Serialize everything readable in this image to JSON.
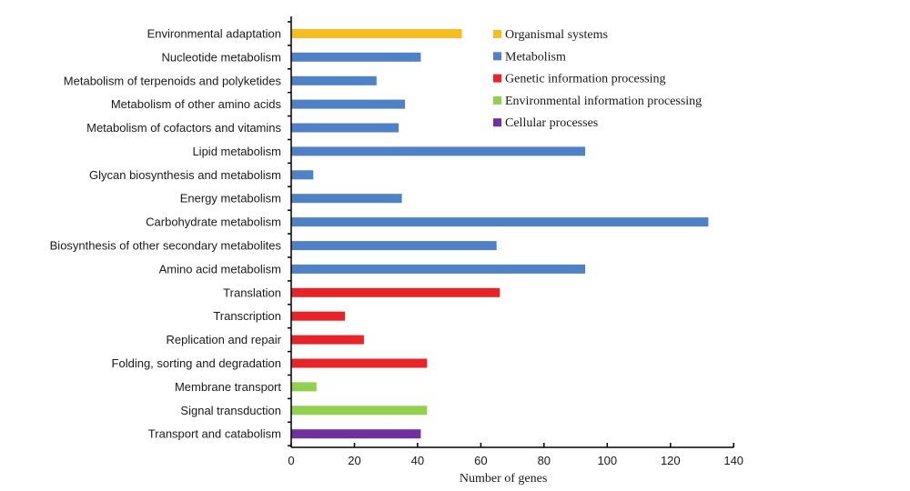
{
  "chart_data": {
    "type": "bar",
    "orientation": "horizontal",
    "categories": [
      "Environmental adaptation",
      "Nucleotide metabolism",
      "Metabolism of terpenoids and polyketides",
      "Metabolism of other amino acids",
      "Metabolism of cofactors and vitamins",
      "Lipid metabolism",
      "Glycan biosynthesis and metabolism",
      "Energy metabolism",
      "Carbohydrate metabolism",
      "Biosynthesis of other secondary metabolites",
      "Amino acid metabolism",
      "Translation",
      "Transcription",
      "Replication and repair",
      "Folding, sorting and degradation",
      "Membrane transport",
      "Signal transduction",
      "Transport and catabolism"
    ],
    "values": [
      54,
      41,
      27,
      36,
      34,
      93,
      7,
      35,
      132,
      65,
      93,
      66,
      17,
      23,
      43,
      8,
      43,
      41
    ],
    "groups": [
      "Organismal systems",
      "Metabolism",
      "Metabolism",
      "Metabolism",
      "Metabolism",
      "Metabolism",
      "Metabolism",
      "Metabolism",
      "Metabolism",
      "Metabolism",
      "Metabolism",
      "Genetic information processing",
      "Genetic information processing",
      "Genetic information processing",
      "Genetic information processing",
      "Environmental information processing",
      "Environmental information processing",
      "Cellular processes"
    ],
    "legend": [
      {
        "name": "Organismal systems",
        "color": "#f5bd1f"
      },
      {
        "name": "Metabolism",
        "color": "#4f81c6"
      },
      {
        "name": "Genetic information processing",
        "color": "#e8232a"
      },
      {
        "name": "Environmental information processing",
        "color": "#92d050"
      },
      {
        "name": "Cellular processes",
        "color": "#7030a0"
      }
    ],
    "xlabel": "Number of genes",
    "ylabel": "",
    "title": "",
    "xlim": [
      0,
      140
    ],
    "xticks": [
      0,
      20,
      40,
      60,
      80,
      100,
      120,
      140
    ],
    "grid": false,
    "legend_position": "top-right"
  }
}
